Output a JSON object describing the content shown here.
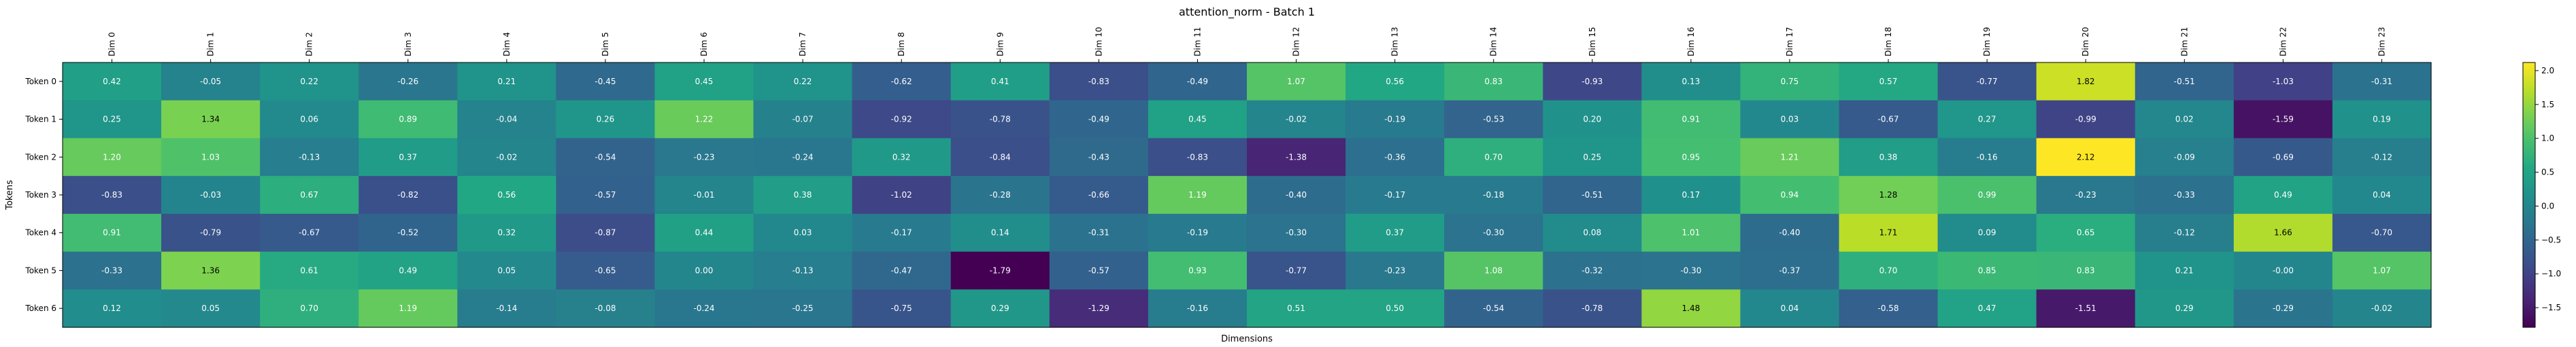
{
  "chart_data": {
    "type": "heatmap",
    "title": "attention_norm - Batch 1",
    "xlabel": "Dimensions",
    "ylabel": "Tokens",
    "x_categories": [
      "Dim 0",
      "Dim 1",
      "Dim 2",
      "Dim 3",
      "Dim 4",
      "Dim 5",
      "Dim 6",
      "Dim 7",
      "Dim 8",
      "Dim 9",
      "Dim 10",
      "Dim 11",
      "Dim 12",
      "Dim 13",
      "Dim 14",
      "Dim 15",
      "Dim 16",
      "Dim 17",
      "Dim 18",
      "Dim 19",
      "Dim 20",
      "Dim 21",
      "Dim 22",
      "Dim 23"
    ],
    "y_categories": [
      "Token 0",
      "Token 1",
      "Token 2",
      "Token 3",
      "Token 4",
      "Token 5",
      "Token 6"
    ],
    "values": [
      [
        0.42,
        -0.05,
        0.22,
        -0.26,
        0.21,
        -0.45,
        0.45,
        0.22,
        -0.62,
        0.41,
        -0.83,
        -0.49,
        1.07,
        0.56,
        0.83,
        -0.93,
        0.13,
        0.75,
        0.57,
        -0.77,
        1.82,
        -0.51,
        -1.03,
        -0.31
      ],
      [
        0.25,
        1.34,
        0.06,
        0.89,
        -0.04,
        0.26,
        1.22,
        -0.07,
        -0.92,
        -0.78,
        -0.49,
        0.45,
        -0.02,
        -0.19,
        -0.53,
        0.2,
        0.91,
        0.03,
        -0.67,
        0.27,
        -0.99,
        0.02,
        -1.59,
        0.19
      ],
      [
        1.2,
        1.03,
        -0.13,
        0.37,
        -0.02,
        -0.54,
        -0.23,
        -0.24,
        0.32,
        -0.84,
        -0.43,
        -0.83,
        -1.38,
        -0.36,
        0.7,
        0.25,
        0.95,
        1.21,
        0.38,
        -0.16,
        2.12,
        -0.09,
        -0.69,
        -0.12
      ],
      [
        -0.83,
        -0.03,
        0.67,
        -0.82,
        0.56,
        -0.57,
        -0.01,
        0.38,
        -1.02,
        -0.28,
        -0.66,
        1.19,
        -0.4,
        -0.17,
        -0.18,
        -0.51,
        0.17,
        0.94,
        1.28,
        0.99,
        -0.23,
        -0.33,
        0.49,
        0.04
      ],
      [
        0.91,
        -0.79,
        -0.67,
        -0.52,
        0.32,
        -0.87,
        0.44,
        0.03,
        -0.17,
        0.14,
        -0.31,
        -0.19,
        -0.3,
        0.37,
        -0.3,
        0.08,
        1.01,
        -0.4,
        1.71,
        0.09,
        0.65,
        -0.12,
        1.66,
        -0.7
      ],
      [
        -0.33,
        1.36,
        0.61,
        0.49,
        0.05,
        -0.65,
        0.0,
        -0.13,
        -0.47,
        -1.79,
        -0.57,
        0.93,
        -0.77,
        -0.23,
        1.08,
        -0.32,
        -0.3,
        -0.37,
        0.7,
        0.85,
        0.83,
        0.21,
        -0.0,
        1.07
      ],
      [
        0.12,
        0.05,
        0.7,
        1.19,
        -0.14,
        -0.08,
        -0.24,
        -0.25,
        -0.75,
        0.29,
        -1.29,
        -0.16,
        0.51,
        0.5,
        -0.54,
        -0.78,
        1.48,
        0.04,
        -0.58,
        0.47,
        -1.51,
        0.29,
        -0.29,
        -0.02
      ]
    ],
    "value_labels": [
      [
        "0.42",
        "-0.05",
        "0.22",
        "-0.26",
        "0.21",
        "-0.45",
        "0.45",
        "0.22",
        "-0.62",
        "0.41",
        "-0.83",
        "-0.49",
        "1.07",
        "0.56",
        "0.83",
        "-0.93",
        "0.13",
        "0.75",
        "0.57",
        "-0.77",
        "1.82",
        "-0.51",
        "-1.03",
        "-0.31"
      ],
      [
        "0.25",
        "1.34",
        "0.06",
        "0.89",
        "-0.04",
        "0.26",
        "1.22",
        "-0.07",
        "-0.92",
        "-0.78",
        "-0.49",
        "0.45",
        "-0.02",
        "-0.19",
        "-0.53",
        "0.20",
        "0.91",
        "0.03",
        "-0.67",
        "0.27",
        "-0.99",
        "0.02",
        "-1.59",
        "0.19"
      ],
      [
        "1.20",
        "1.03",
        "-0.13",
        "0.37",
        "-0.02",
        "-0.54",
        "-0.23",
        "-0.24",
        "0.32",
        "-0.84",
        "-0.43",
        "-0.83",
        "-1.38",
        "-0.36",
        "0.70",
        "0.25",
        "0.95",
        "1.21",
        "0.38",
        "-0.16",
        "2.12",
        "-0.09",
        "-0.69",
        "-0.12"
      ],
      [
        "-0.83",
        "-0.03",
        "0.67",
        "-0.82",
        "0.56",
        "-0.57",
        "-0.01",
        "0.38",
        "-1.02",
        "-0.28",
        "-0.66",
        "1.19",
        "-0.40",
        "-0.17",
        "-0.18",
        "-0.51",
        "0.17",
        "0.94",
        "1.28",
        "0.99",
        "-0.23",
        "-0.33",
        "0.49",
        "0.04"
      ],
      [
        "0.91",
        "-0.79",
        "-0.67",
        "-0.52",
        "0.32",
        "-0.87",
        "0.44",
        "0.03",
        "-0.17",
        "0.14",
        "-0.31",
        "-0.19",
        "-0.30",
        "0.37",
        "-0.30",
        "0.08",
        "1.01",
        "-0.40",
        "1.71",
        "0.09",
        "0.65",
        "-0.12",
        "1.66",
        "-0.70"
      ],
      [
        "-0.33",
        "1.36",
        "0.61",
        "0.49",
        "0.05",
        "-0.65",
        "0.00",
        "-0.13",
        "-0.47",
        "-1.79",
        "-0.57",
        "0.93",
        "-0.77",
        "-0.23",
        "1.08",
        "-0.32",
        "-0.30",
        "-0.37",
        "0.70",
        "0.85",
        "0.83",
        "0.21",
        "-0.00",
        "1.07"
      ],
      [
        "0.12",
        "0.05",
        "0.70",
        "1.19",
        "-0.14",
        "-0.08",
        "-0.24",
        "-0.25",
        "-0.75",
        "0.29",
        "-1.29",
        "-0.16",
        "0.51",
        "0.50",
        "-0.54",
        "-0.78",
        "1.48",
        "0.04",
        "-0.58",
        "0.47",
        "-1.51",
        "0.29",
        "-0.29",
        "-0.02"
      ]
    ],
    "colormap": "viridis",
    "color_range": [
      -1.79,
      2.12
    ],
    "colorbar_ticks": [
      -1.5,
      -1.0,
      -0.5,
      0.0,
      0.5,
      1.0,
      1.5,
      2.0
    ],
    "colorbar_tick_labels": [
      "−1.5",
      "−1.0",
      "−0.5",
      "0.0",
      "0.5",
      "1.0",
      "1.5",
      "2.0"
    ],
    "grid": false,
    "legend": "colorbar right"
  }
}
